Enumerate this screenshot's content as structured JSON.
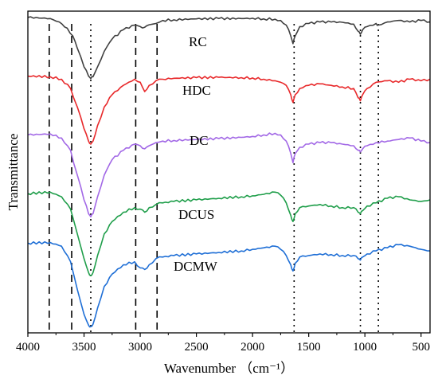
{
  "chart_data": {
    "type": "line",
    "xlabel": "Wavenumber （cm⁻¹）",
    "ylabel": "Transmittance",
    "xlim": [
      4000,
      420
    ],
    "x_reversed": true,
    "y_ticks_shown": false,
    "x_ticks": [
      4000,
      3500,
      3000,
      2500,
      2000,
      1500,
      1000,
      500
    ],
    "x_tick_labels": [
      "4000",
      "3500",
      "3000",
      "2500",
      "2000",
      "1500",
      "1000",
      "500"
    ],
    "dashed_reference_lines": [
      3810,
      3610,
      3040,
      2850
    ],
    "dotted_reference_lines": [
      3440,
      1630,
      1040,
      880
    ],
    "colors": {
      "RC": "#404040",
      "HDC": "#e8282a",
      "DC": "#a268e6",
      "DCUS": "#1f9e4a",
      "DCMW": "#1f6fd6"
    },
    "series": [
      {
        "name": "RC",
        "label": "RC",
        "x": [
          4000,
          3800,
          3720,
          3650,
          3600,
          3560,
          3500,
          3460,
          3440,
          3420,
          3380,
          3320,
          3250,
          3150,
          3050,
          3000,
          2960,
          2920,
          2860,
          2800,
          2700,
          2500,
          2300,
          2100,
          2000,
          1900,
          1800,
          1750,
          1700,
          1660,
          1640,
          1620,
          1580,
          1500,
          1400,
          1300,
          1200,
          1100,
          1060,
          1040,
          1020,
          980,
          900,
          880,
          800,
          700,
          600,
          500,
          420
        ],
        "y": [
          100,
          99.6,
          98.5,
          96.5,
          94,
          90,
          84,
          81,
          80.2,
          80.8,
          84,
          89,
          93,
          96,
          97.5,
          97,
          96.8,
          97.6,
          98,
          99,
          99.2,
          99.5,
          99.6,
          99.6,
          99.7,
          99.5,
          99.4,
          99,
          97.5,
          94,
          91.5,
          94,
          97,
          98,
          98.5,
          98.5,
          98.4,
          97.8,
          95.5,
          94.5,
          96,
          97,
          98,
          97.5,
          98.5,
          99,
          98.5,
          99,
          98.5
        ]
      },
      {
        "name": "HDC",
        "label": "HDC",
        "x": [
          4000,
          3800,
          3700,
          3620,
          3560,
          3500,
          3460,
          3440,
          3420,
          3380,
          3320,
          3250,
          3150,
          3050,
          3000,
          2960,
          2920,
          2860,
          2800,
          2700,
          2500,
          2300,
          2100,
          2000,
          1900,
          1800,
          1750,
          1700,
          1660,
          1640,
          1620,
          1580,
          1500,
          1400,
          1300,
          1200,
          1100,
          1060,
          1040,
          1020,
          980,
          900,
          800,
          700,
          600,
          500,
          420
        ],
        "y": [
          81,
          80.8,
          80,
          77,
          71,
          64,
          60,
          59,
          60,
          65,
          71,
          75,
          78,
          80,
          79,
          76,
          78,
          79.5,
          80,
          80.3,
          80.5,
          80.6,
          80.5,
          80.4,
          80,
          79.5,
          79,
          78,
          75,
          72.5,
          75,
          77,
          78,
          78.5,
          78,
          77.5,
          77,
          74,
          73,
          75,
          77,
          79,
          79.5,
          79,
          80,
          79.5,
          80
        ]
      },
      {
        "name": "DC",
        "label": "DC",
        "x": [
          4000,
          3800,
          3700,
          3620,
          3560,
          3500,
          3460,
          3440,
          3420,
          3380,
          3320,
          3250,
          3150,
          3050,
          3000,
          2960,
          2920,
          2860,
          2800,
          2700,
          2500,
          2300,
          2100,
          2000,
          1900,
          1800,
          1750,
          1700,
          1660,
          1640,
          1620,
          1580,
          1500,
          1400,
          1300,
          1200,
          1100,
          1060,
          1040,
          1020,
          980,
          900,
          800,
          700,
          600,
          500,
          420
        ],
        "y": [
          62,
          62.3,
          61,
          57,
          49,
          41,
          36.5,
          35.5,
          36.5,
          42,
          49,
          54,
          57,
          59,
          58.5,
          57.5,
          58.5,
          59.5,
          60,
          60.2,
          60.5,
          60.8,
          61.2,
          61.5,
          62,
          62.5,
          62,
          60,
          56,
          53,
          56,
          58,
          59,
          59.5,
          59.5,
          59,
          58.5,
          57,
          56.5,
          57.5,
          58.5,
          59.5,
          60,
          60.5,
          61,
          60,
          59.5
        ]
      },
      {
        "name": "DCUS",
        "label": "DCUS",
        "x": [
          4000,
          3800,
          3700,
          3620,
          3560,
          3500,
          3460,
          3440,
          3420,
          3380,
          3320,
          3250,
          3150,
          3050,
          3000,
          2960,
          2920,
          2860,
          2800,
          2700,
          2500,
          2300,
          2100,
          2000,
          1900,
          1800,
          1750,
          1700,
          1660,
          1640,
          1620,
          1580,
          1500,
          1400,
          1300,
          1200,
          1100,
          1060,
          1040,
          1020,
          980,
          900,
          800,
          700,
          600,
          500,
          420
        ],
        "y": [
          43,
          43.5,
          42,
          38,
          30,
          22,
          17.5,
          16.5,
          17.5,
          23,
          30,
          34,
          37,
          38.5,
          38,
          37,
          38.5,
          39.5,
          40,
          40.5,
          41,
          41.5,
          42,
          42.3,
          42.8,
          43.5,
          42.5,
          40,
          36,
          34,
          36.5,
          38.5,
          39,
          39.5,
          39,
          38.5,
          38.5,
          37,
          36.5,
          37.5,
          39,
          40,
          41.5,
          42,
          41,
          40.5,
          41
        ]
      },
      {
        "name": "DCMW",
        "label": "DCMW",
        "x": [
          4000,
          3800,
          3700,
          3620,
          3560,
          3500,
          3460,
          3440,
          3420,
          3380,
          3320,
          3250,
          3150,
          3050,
          3000,
          2960,
          2920,
          2860,
          2800,
          2700,
          2500,
          2300,
          2100,
          2000,
          1900,
          1800,
          1750,
          1700,
          1660,
          1640,
          1620,
          1580,
          1500,
          1400,
          1300,
          1200,
          1100,
          1060,
          1040,
          1020,
          980,
          900,
          800,
          700,
          600,
          500,
          420
        ],
        "y": [
          27,
          27.2,
          26,
          21,
          12,
          4,
          0.5,
          0,
          0.8,
          6,
          13,
          17,
          20,
          21,
          19,
          18.5,
          20,
          22,
          22.5,
          23,
          23.5,
          24,
          24.5,
          25,
          25.5,
          26,
          25,
          23,
          20,
          18,
          20.5,
          22.5,
          23,
          23.5,
          23.3,
          23,
          23,
          22,
          21.5,
          22.5,
          23.5,
          24.5,
          25.5,
          26.5,
          26,
          25,
          24.5
        ]
      }
    ]
  }
}
